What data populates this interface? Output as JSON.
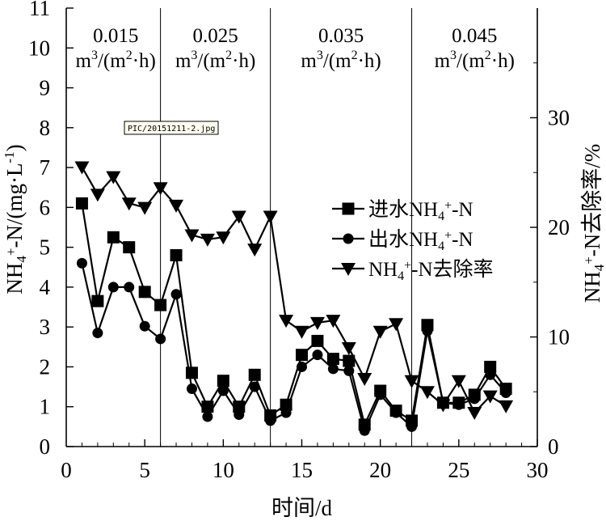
{
  "chart_data": {
    "type": "line",
    "xlabel": "时间/d",
    "ylabel_left": "NH4+-N/(mg·L-1)",
    "ylabel_right": "NH4+-N去除率/%",
    "xlim": [
      0,
      30
    ],
    "ylim_left": [
      0,
      11
    ],
    "ylim_right": [
      0,
      40
    ],
    "x_ticks": [
      0,
      5,
      10,
      15,
      20,
      25,
      30
    ],
    "y_left_ticks": [
      0,
      1,
      2,
      3,
      4,
      5,
      6,
      7,
      8,
      9,
      10,
      11
    ],
    "y_right_ticks": [
      0,
      10,
      20,
      30
    ],
    "grid": false,
    "legend_position": "right",
    "stamp": "PIC/20151211-2.jpg",
    "phase_boundaries": [
      6,
      13,
      22
    ],
    "phases": [
      {
        "value": "0.015",
        "unit": "m3/(m2·h)"
      },
      {
        "value": "0.025",
        "unit": "m3/(m2·h)"
      },
      {
        "value": "0.035",
        "unit": "m3/(m2·h)"
      },
      {
        "value": "0.045",
        "unit": "m3/(m2·h)"
      }
    ],
    "x": [
      1,
      2,
      3,
      4,
      5,
      6,
      7,
      8,
      9,
      10,
      11,
      12,
      13,
      14,
      15,
      16,
      17,
      18,
      19,
      20,
      21,
      22,
      23,
      24,
      25,
      26,
      27,
      28
    ],
    "series": [
      {
        "name": "进水NH4+-N",
        "marker": "square",
        "axis": "left",
        "values": [
          6.1,
          3.65,
          5.25,
          5.0,
          3.88,
          3.55,
          4.8,
          1.85,
          1.0,
          1.65,
          1.0,
          1.8,
          0.78,
          1.05,
          2.3,
          2.65,
          2.2,
          2.15,
          0.55,
          1.4,
          0.9,
          0.65,
          3.05,
          1.1,
          1.1,
          1.3,
          2.0,
          1.45
        ]
      },
      {
        "name": "出水NH4+-N",
        "marker": "circle",
        "axis": "left",
        "values": [
          4.6,
          2.85,
          4.0,
          4.0,
          3.02,
          2.7,
          3.82,
          1.45,
          0.75,
          1.4,
          0.8,
          1.5,
          0.65,
          0.85,
          2.0,
          2.3,
          1.95,
          1.9,
          0.4,
          1.3,
          0.85,
          0.5,
          2.9,
          1.1,
          1.05,
          1.2,
          1.8,
          1.35
        ]
      },
      {
        "name": "NH4+-N去除率",
        "marker": "triangle-down",
        "axis": "right",
        "values": [
          25.5,
          23.0,
          24.6,
          22.2,
          21.8,
          23.6,
          22.0,
          19.3,
          18.9,
          19.1,
          21.0,
          18.0,
          21.0,
          11.5,
          10.5,
          11.3,
          11.5,
          9.0,
          6.2,
          10.5,
          11.2,
          6.0,
          5.0,
          3.8,
          6.0,
          3.1,
          4.6,
          3.7
        ]
      }
    ]
  }
}
